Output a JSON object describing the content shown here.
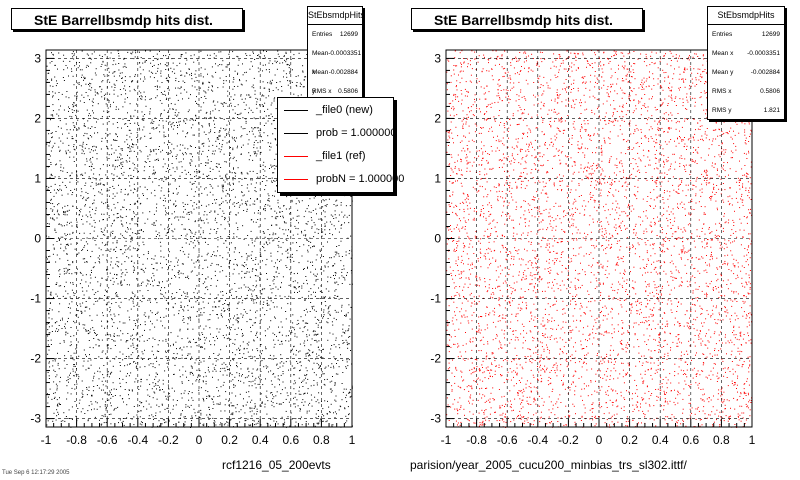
{
  "chart_data": [
    {
      "type": "scatter",
      "title": "StE BarrelIbsmdp hits dist.",
      "xlim": [
        -1,
        1
      ],
      "ylim": [
        -3.14,
        3.14
      ],
      "x_ticks": [
        "-1",
        "-0.8",
        "-0.6",
        "-0.4",
        "-0.2",
        "0",
        "0.2",
        "0.4",
        "0.6",
        "0.8",
        "1"
      ],
      "y_ticks": [
        "-3",
        "-2",
        "-1",
        "0",
        "1",
        "2",
        "3"
      ],
      "grid": true,
      "marker_color": "#000000",
      "distribution": "uniform",
      "stats": {
        "title": "StEbsmdpHits",
        "rows": [
          {
            "label": "Entries",
            "value": "12699"
          },
          {
            "label": "Mean x",
            "value": "-0.0003351"
          },
          {
            "label": "Mean y",
            "value": "-0.002884"
          },
          {
            "label": "RMS x",
            "value": "0.5806"
          }
        ]
      },
      "legend": {
        "placement": "top-right",
        "entries": [
          {
            "label": "_file0 (new)",
            "color": "#000000"
          },
          {
            "label": "prob = 1.000000",
            "color": "#000000"
          },
          {
            "label": "_file1 (ref)",
            "color": "#ff0000"
          },
          {
            "label": "probN = 1.000000",
            "color": "#ff0000"
          }
        ]
      },
      "footer": "rcf1216_05_200evts"
    },
    {
      "type": "scatter",
      "title": "StE BarrelIbsmdp hits dist.",
      "xlim": [
        -1,
        1
      ],
      "ylim": [
        -3.14,
        3.14
      ],
      "x_ticks": [
        "-1",
        "-0.8",
        "-0.6",
        "-0.4",
        "-0.2",
        "0",
        "0.2",
        "0.4",
        "0.6",
        "0.8",
        "1"
      ],
      "y_ticks": [
        "-3",
        "-2",
        "-1",
        "0",
        "1",
        "2",
        "3"
      ],
      "grid": true,
      "marker_color": "#ff0000",
      "distribution": "uniform",
      "stats": {
        "title": "StEbsmdpHits",
        "rows": [
          {
            "label": "Entries",
            "value": "12699"
          },
          {
            "label": "Mean x",
            "value": "-0.0003351"
          },
          {
            "label": "Mean y",
            "value": "-0.002884"
          },
          {
            "label": "RMS x",
            "value": "0.5806"
          },
          {
            "label": "RMS y",
            "value": "1.821"
          }
        ]
      },
      "footer": "parision/year_2005_cucu200_minbias_trs_sl302.ittf/"
    }
  ],
  "date_stamp": "Tue Sep  6 12:17:29 2005"
}
